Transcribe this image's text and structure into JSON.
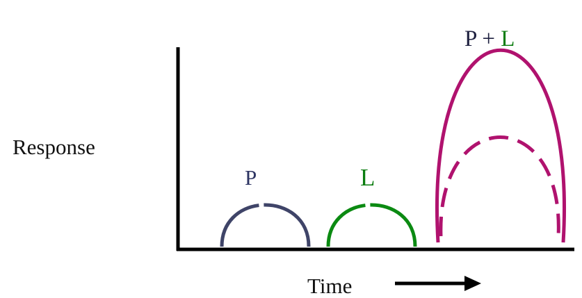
{
  "labels": {
    "response": "Response",
    "time": "Time",
    "p": "P",
    "l": "L",
    "combined_p": "P",
    "combined_plus": "+",
    "combined_l": "L"
  },
  "colors": {
    "axis": "#000000",
    "text": "#111111",
    "p_curve": "#3f4468",
    "p_label": "#2e3563",
    "l_curve": "#0b8a12",
    "l_label": "#0b7d10",
    "combined_curve": "#b0126e"
  }
}
